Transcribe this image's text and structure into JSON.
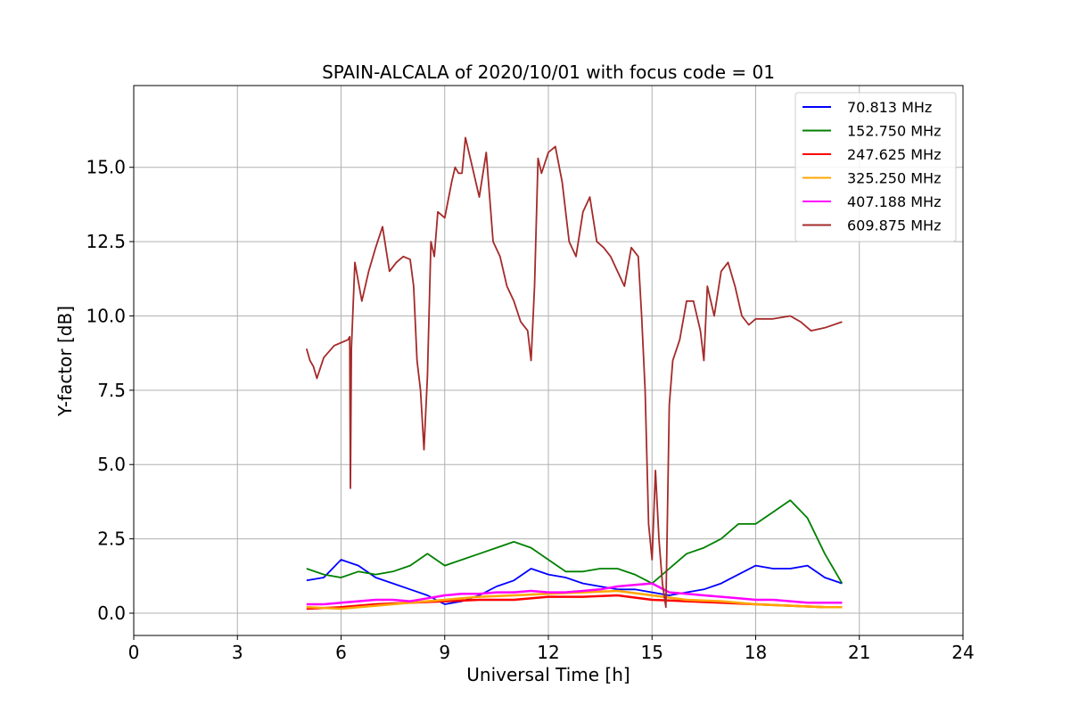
{
  "chart_data": {
    "type": "line",
    "title": "SPAIN-ALCALA of 2020/10/01 with focus code = 01",
    "xlabel": "Universal Time [h]",
    "ylabel": "Y-factor [dB]",
    "xlim": [
      0,
      24
    ],
    "ylim": [
      -0.75,
      17.75
    ],
    "xticks": [
      0,
      3,
      6,
      9,
      12,
      15,
      18,
      21,
      24
    ],
    "xtick_labels": [
      "0",
      "3",
      "6",
      "9",
      "12",
      "15",
      "18",
      "21",
      "24"
    ],
    "yticks": [
      0,
      2.5,
      5,
      7.5,
      10,
      12.5,
      15
    ],
    "ytick_labels": [
      "0.0",
      "2.5",
      "5.0",
      "7.5",
      "10.0",
      "12.5",
      "15.0"
    ],
    "grid": true,
    "legend_position": "top-right",
    "series": [
      {
        "name": " 70.813 MHz",
        "color": "#0000ff",
        "x": [
          5.0,
          5.5,
          6.0,
          6.5,
          7.0,
          7.5,
          8.0,
          8.5,
          9.0,
          9.5,
          10.0,
          10.5,
          11.0,
          11.5,
          12.0,
          12.5,
          13.0,
          13.5,
          14.0,
          14.5,
          15.0,
          15.5,
          16.0,
          16.5,
          17.0,
          17.5,
          18.0,
          18.5,
          19.0,
          19.5,
          20.0,
          20.5
        ],
        "y": [
          1.1,
          1.2,
          1.8,
          1.6,
          1.2,
          1.0,
          0.8,
          0.6,
          0.3,
          0.4,
          0.6,
          0.9,
          1.1,
          1.5,
          1.3,
          1.2,
          1.0,
          0.9,
          0.8,
          0.8,
          0.7,
          0.6,
          0.7,
          0.8,
          1.0,
          1.3,
          1.6,
          1.5,
          1.5,
          1.6,
          1.2,
          1.0
        ]
      },
      {
        "name": "152.750 MHz",
        "color": "#008000",
        "x": [
          5.0,
          5.5,
          6.0,
          6.5,
          7.0,
          7.5,
          8.0,
          8.5,
          9.0,
          9.5,
          10.0,
          10.5,
          11.0,
          11.5,
          12.0,
          12.5,
          13.0,
          13.5,
          14.0,
          14.5,
          15.0,
          15.5,
          16.0,
          16.5,
          17.0,
          17.5,
          18.0,
          18.5,
          19.0,
          19.5,
          20.0,
          20.5
        ],
        "y": [
          1.5,
          1.3,
          1.2,
          1.4,
          1.3,
          1.4,
          1.6,
          2.0,
          1.6,
          1.8,
          2.0,
          2.2,
          2.4,
          2.2,
          1.8,
          1.4,
          1.4,
          1.5,
          1.5,
          1.3,
          1.0,
          1.5,
          2.0,
          2.2,
          2.5,
          3.0,
          3.0,
          3.4,
          3.8,
          3.2,
          2.0,
          1.0
        ]
      },
      {
        "name": "247.625 MHz",
        "color": "#ff0000",
        "x": [
          5.0,
          6.0,
          7.0,
          8.0,
          9.0,
          10.0,
          11.0,
          12.0,
          13.0,
          14.0,
          15.0,
          16.0,
          17.0,
          18.0,
          19.0,
          20.0,
          20.5
        ],
        "y": [
          0.15,
          0.2,
          0.3,
          0.35,
          0.4,
          0.45,
          0.45,
          0.55,
          0.55,
          0.6,
          0.45,
          0.4,
          0.35,
          0.3,
          0.25,
          0.2,
          0.2
        ]
      },
      {
        "name": "325.250 MHz",
        "color": "#ffa500",
        "x": [
          5.0,
          6.0,
          7.0,
          8.0,
          9.0,
          10.0,
          11.0,
          12.0,
          13.0,
          14.0,
          15.0,
          16.0,
          17.0,
          18.0,
          19.0,
          20.0,
          20.5
        ],
        "y": [
          0.2,
          0.15,
          0.25,
          0.35,
          0.45,
          0.55,
          0.6,
          0.65,
          0.7,
          0.75,
          0.6,
          0.45,
          0.4,
          0.3,
          0.25,
          0.2,
          0.2
        ]
      },
      {
        "name": "407.188 MHz",
        "color": "#ff00ff",
        "x": [
          5.0,
          5.5,
          6.0,
          6.5,
          7.0,
          7.5,
          8.0,
          8.5,
          9.0,
          9.5,
          10.0,
          10.5,
          11.0,
          11.5,
          12.0,
          12.5,
          13.0,
          13.5,
          14.0,
          14.5,
          15.0,
          15.5,
          16.0,
          16.5,
          17.0,
          17.5,
          18.0,
          18.5,
          19.0,
          19.5,
          20.0,
          20.5
        ],
        "y": [
          0.3,
          0.3,
          0.35,
          0.4,
          0.45,
          0.45,
          0.4,
          0.5,
          0.6,
          0.65,
          0.65,
          0.7,
          0.7,
          0.75,
          0.7,
          0.7,
          0.75,
          0.8,
          0.9,
          0.95,
          1.0,
          0.7,
          0.65,
          0.6,
          0.55,
          0.5,
          0.45,
          0.45,
          0.4,
          0.35,
          0.35,
          0.35
        ]
      },
      {
        "name": "609.875 MHz",
        "color": "#a52a2a",
        "x": [
          5.0,
          5.1,
          5.2,
          5.3,
          5.5,
          5.8,
          6.0,
          6.2,
          6.25,
          6.27,
          6.3,
          6.4,
          6.6,
          6.8,
          7.0,
          7.2,
          7.4,
          7.6,
          7.8,
          8.0,
          8.1,
          8.2,
          8.3,
          8.4,
          8.5,
          8.6,
          8.7,
          8.8,
          9.0,
          9.2,
          9.3,
          9.4,
          9.5,
          9.6,
          9.8,
          10.0,
          10.2,
          10.4,
          10.6,
          10.8,
          11.0,
          11.2,
          11.4,
          11.5,
          11.6,
          11.7,
          11.8,
          12.0,
          12.2,
          12.4,
          12.6,
          12.8,
          13.0,
          13.2,
          13.4,
          13.6,
          13.8,
          14.0,
          14.2,
          14.4,
          14.6,
          14.7,
          14.8,
          14.9,
          15.0,
          15.1,
          15.2,
          15.3,
          15.4,
          15.5,
          15.6,
          15.8,
          16.0,
          16.2,
          16.4,
          16.5,
          16.6,
          16.8,
          17.0,
          17.2,
          17.4,
          17.6,
          17.8,
          18.0,
          18.5,
          19.0,
          19.3,
          19.6,
          20.0,
          20.5
        ],
        "y": [
          8.9,
          8.5,
          8.3,
          7.9,
          8.6,
          9.0,
          9.1,
          9.2,
          9.3,
          4.2,
          8.9,
          11.8,
          10.5,
          11.5,
          12.3,
          13.0,
          11.5,
          11.8,
          12.0,
          11.9,
          11.0,
          8.5,
          7.5,
          5.5,
          8.0,
          12.5,
          12.0,
          13.5,
          13.3,
          14.5,
          15.0,
          14.8,
          14.8,
          16.0,
          15.0,
          14.0,
          15.5,
          12.5,
          12.0,
          11.0,
          10.5,
          9.8,
          9.5,
          8.5,
          11.0,
          15.3,
          14.8,
          15.5,
          15.7,
          14.5,
          12.5,
          12.0,
          13.5,
          14.0,
          12.5,
          12.3,
          12.0,
          11.5,
          11.0,
          12.3,
          12.0,
          10.0,
          7.5,
          3.0,
          1.8,
          4.8,
          2.5,
          1.0,
          0.2,
          7.0,
          8.5,
          9.2,
          10.5,
          10.5,
          9.5,
          8.5,
          11.0,
          10.0,
          11.5,
          11.8,
          11.0,
          10.0,
          9.7,
          9.9,
          9.9,
          10.0,
          9.8,
          9.5,
          9.6,
          9.8
        ]
      }
    ]
  }
}
